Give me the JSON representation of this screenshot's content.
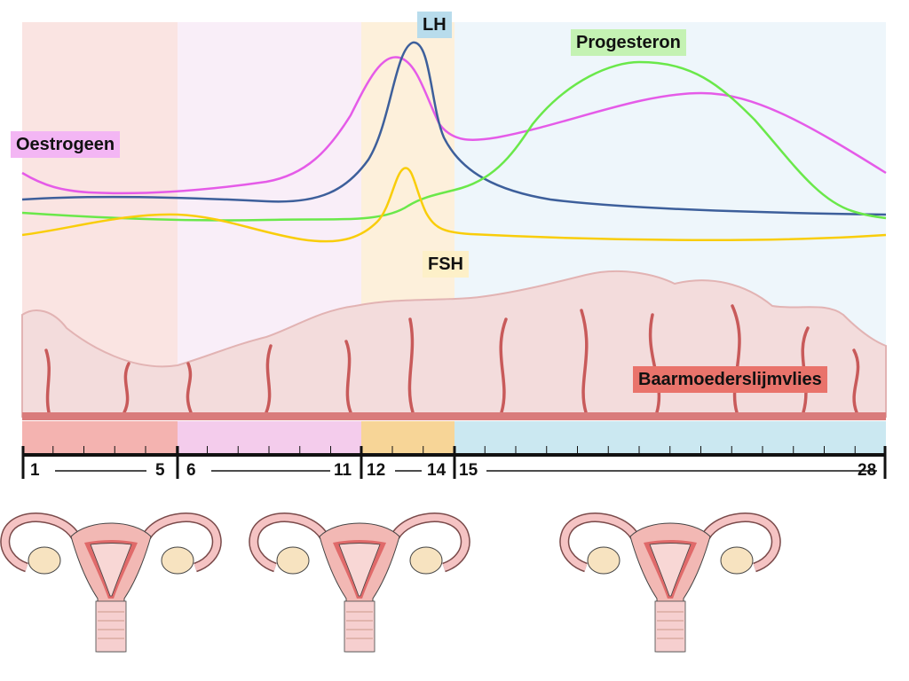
{
  "labels": {
    "oestrogen": "Oestrogeen",
    "lh": "LH",
    "progesterone": "Progesteron",
    "fsh": "FSH",
    "endometrium": "Baarmoederslijmvlies"
  },
  "phases": [
    {
      "start": "1",
      "end": "5",
      "color": "#f4b3b0",
      "bg": "#fae4e2"
    },
    {
      "start": "6",
      "end": "11",
      "color": "#f4ccec",
      "bg": "#f9eef8"
    },
    {
      "start": "12",
      "end": "14",
      "color": "#f7d597",
      "bg": "#fdf0db"
    },
    {
      "start": "15",
      "end": "28",
      "color": "#cbe8f1",
      "bg": "#eef6fb"
    }
  ],
  "colors": {
    "oestrogen": "#e55be8",
    "lh": "#3d5f9b",
    "progesterone": "#6ae84a",
    "fsh": "#f9cd0a",
    "endometrium": "#f3dcdc",
    "vessels": "#c85a5a"
  }
}
